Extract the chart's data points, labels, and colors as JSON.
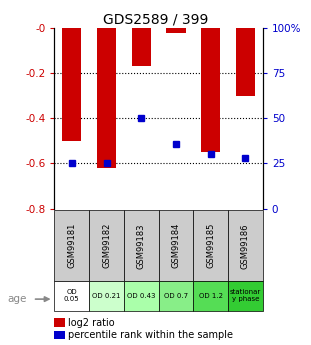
{
  "title": "GDS2589 / 399",
  "samples": [
    "GSM99181",
    "GSM99182",
    "GSM99183",
    "GSM99184",
    "GSM99185",
    "GSM99186"
  ],
  "log2_ratio": [
    -0.5,
    -0.62,
    -0.17,
    -0.025,
    -0.55,
    -0.3
  ],
  "percentile_rank": [
    25,
    25,
    50,
    36,
    30,
    28
  ],
  "bar_color": "#cc0000",
  "dot_color": "#0000cc",
  "ylim_left": [
    -0.8,
    0.0
  ],
  "ylim_right": [
    0,
    100
  ],
  "yticks_left": [
    -0.8,
    -0.6,
    -0.4,
    -0.2,
    0.0
  ],
  "yticks_right": [
    0,
    25,
    50,
    75,
    100
  ],
  "ytick_labels_left": [
    "-0.8",
    "-0.6",
    "-0.4",
    "-0.2",
    "-0"
  ],
  "ytick_labels_right": [
    "0",
    "25",
    "50",
    "75",
    "100%"
  ],
  "age_labels": [
    "OD\n0.05",
    "OD 0.21",
    "OD 0.43",
    "OD 0.7",
    "OD 1.2",
    "stationar\ny phase"
  ],
  "age_colors": [
    "#ffffff",
    "#ccffcc",
    "#aaffaa",
    "#88ee88",
    "#55dd55",
    "#33cc33"
  ],
  "sample_bg_color": "#cccccc",
  "left_tick_color": "#cc0000",
  "right_tick_color": "#0000cc"
}
